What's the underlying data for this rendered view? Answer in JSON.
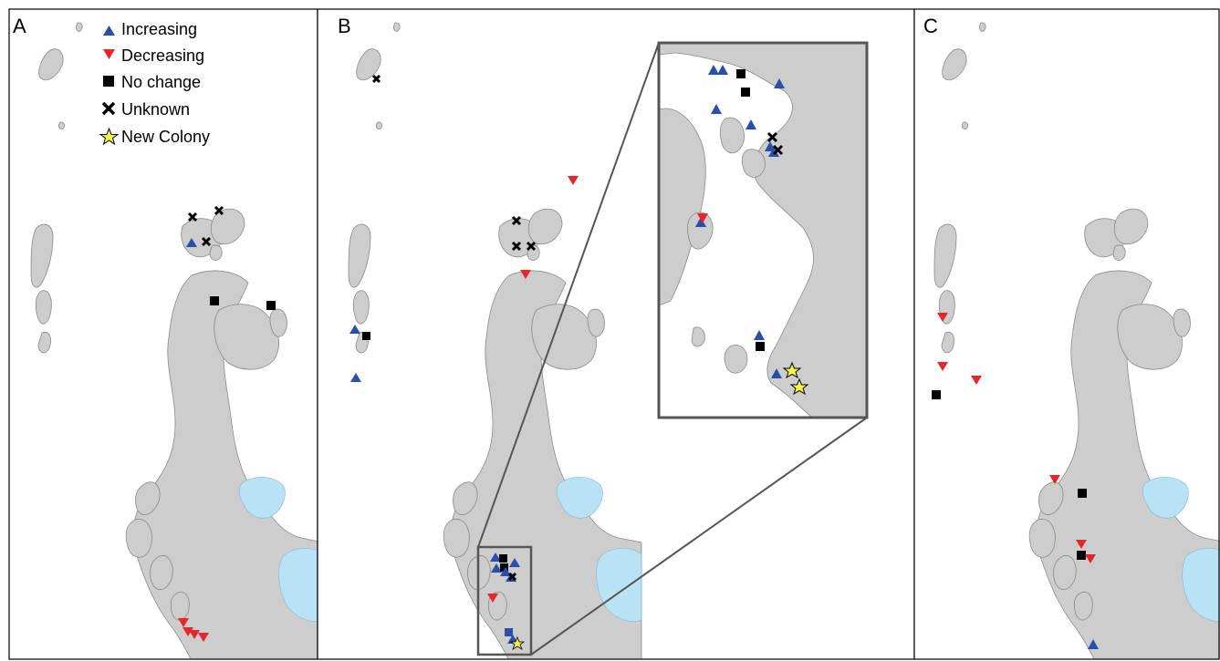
{
  "panels": [
    {
      "label": "A"
    },
    {
      "label": "B"
    },
    {
      "label": "C"
    }
  ],
  "legend": {
    "items": [
      {
        "key": "increasing",
        "label": "Increasing",
        "color": "#2a4fa8",
        "icon": "triangle-up-icon"
      },
      {
        "key": "decreasing",
        "label": "Decreasing",
        "color": "#e5262b",
        "icon": "triangle-down-icon"
      },
      {
        "key": "nochange",
        "label": "No change",
        "color": "#000000",
        "icon": "square-icon"
      },
      {
        "key": "unknown",
        "label": "Unknown",
        "color": "#000000",
        "icon": "cross-icon"
      },
      {
        "key": "newcolony",
        "label": "New Colony",
        "color": "#f6f14b",
        "icon": "star-icon"
      }
    ]
  },
  "colors": {
    "land": "#cdcdcd",
    "water": "#b9e3f5",
    "inset_frame": "#555555"
  }
}
